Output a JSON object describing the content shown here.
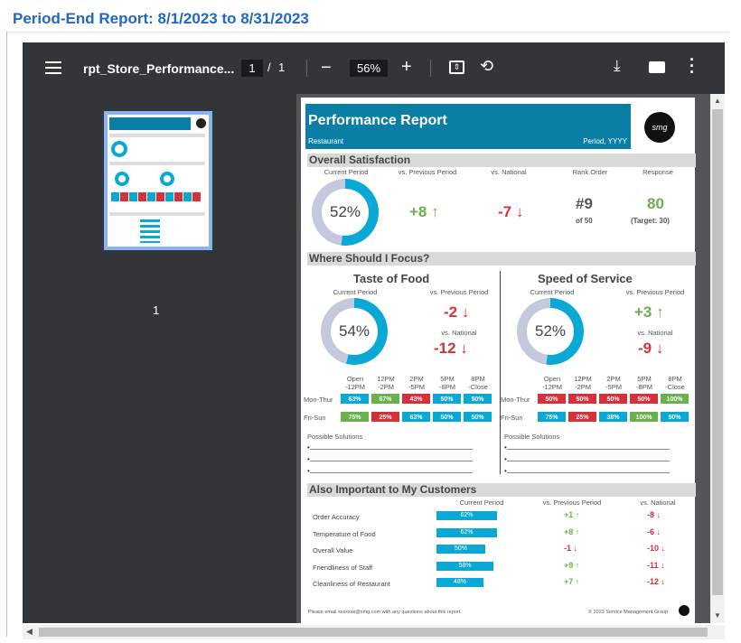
{
  "header": {
    "title": "Period-End Report:   8/1/2023 to 8/31/2023"
  },
  "toolbar": {
    "filename": "rpt_Store_Performance...",
    "page_current": "1",
    "page_sep": "/",
    "page_total": "1",
    "zoom": "56%"
  },
  "thumbnail": {
    "page_num": "1"
  },
  "report": {
    "title": "Performance Report",
    "subtitle_left": "Restaurant",
    "subtitle_right": "Period, YYYY",
    "logo_text": "smg",
    "overall": {
      "section": "Overall Satisfaction",
      "labels": [
        "Current Period",
        "vs. Previous Period",
        "vs. National",
        "Rank Order",
        "Response"
      ],
      "current_pct": "52%",
      "current_value": 0.52,
      "vs_prev": "+8",
      "vs_national": "-7",
      "rank": "#9",
      "rank_of": "of 50",
      "response": "80",
      "target": "(Target: 30)"
    },
    "focus": {
      "section": "Where Should I Focus?",
      "taste": {
        "title": "Taste of Food",
        "current_label": "Current Period",
        "current_pct": "54%",
        "current_value": 0.54,
        "prev_label": "vs. Previous Period",
        "prev": "-2",
        "nat_label": "vs. National",
        "nat": "-12"
      },
      "speed": {
        "title": "Speed of Service",
        "current_label": "Current Period",
        "current_pct": "52%",
        "current_value": 0.52,
        "prev_label": "vs. Previous Period",
        "prev": "+3",
        "nat_label": "vs. National",
        "nat": "-9"
      },
      "time_cols": [
        "Open\n-12PM",
        "12PM\n-2PM",
        "2PM\n-5PM",
        "5PM\n-8PM",
        "8PM\n-Close"
      ],
      "rows": [
        "Mon-Thur",
        "Fri-Sun"
      ],
      "taste_grid": [
        [
          "63%",
          "67%",
          "43%",
          "50%",
          "50%"
        ],
        [
          "75%",
          "25%",
          "63%",
          "50%",
          "50%"
        ]
      ],
      "taste_colors": [
        [
          "#0aa8d4",
          "#6ab04c",
          "#d6303b",
          "#0aa8d4",
          "#0aa8d4"
        ],
        [
          "#6ab04c",
          "#d6303b",
          "#0aa8d4",
          "#0aa8d4",
          "#0aa8d4"
        ]
      ],
      "speed_grid": [
        [
          "50%",
          "50%",
          "50%",
          "50%",
          "100%"
        ],
        [
          "75%",
          "25%",
          "38%",
          "100%",
          "50%"
        ]
      ],
      "speed_colors": [
        [
          "#d6303b",
          "#d6303b",
          "#d6303b",
          "#d6303b",
          "#6ab04c"
        ],
        [
          "#0aa8d4",
          "#d6303b",
          "#0aa8d4",
          "#6ab04c",
          "#0aa8d4"
        ]
      ],
      "solutions": "Possible Solutions"
    },
    "also": {
      "section": "Also Important to My Customers",
      "h_current": "Current Period",
      "h_prev": "vs. Previous Period",
      "h_nat": "vs. National",
      "items": [
        {
          "label": "Order Accuracy",
          "pct": "62%",
          "value": 0.62,
          "prev": "+1",
          "nat": "-8"
        },
        {
          "label": "Temperature of Food",
          "pct": "62%",
          "value": 0.62,
          "prev": "+8",
          "nat": "-6"
        },
        {
          "label": "Overall Value",
          "pct": "50%",
          "value": 0.5,
          "prev": "-1",
          "nat": "-10"
        },
        {
          "label": "Friendliness of Staff",
          "pct": "58%",
          "value": 0.58,
          "prev": "+9",
          "nat": "-11"
        },
        {
          "label": "Cleanliness of Restaurant",
          "pct": "48%",
          "value": 0.48,
          "prev": "+7",
          "nat": "-12"
        }
      ]
    },
    "footer_left": "Please email xxxxxxx@smg.com with any questions about this report.",
    "footer_right": "© 2023 Service Management Group"
  },
  "colors": {
    "accent": "#0aa8d4",
    "green": "#6ab04c",
    "red": "#d6303b",
    "donut_track": "#c4c9dd"
  }
}
